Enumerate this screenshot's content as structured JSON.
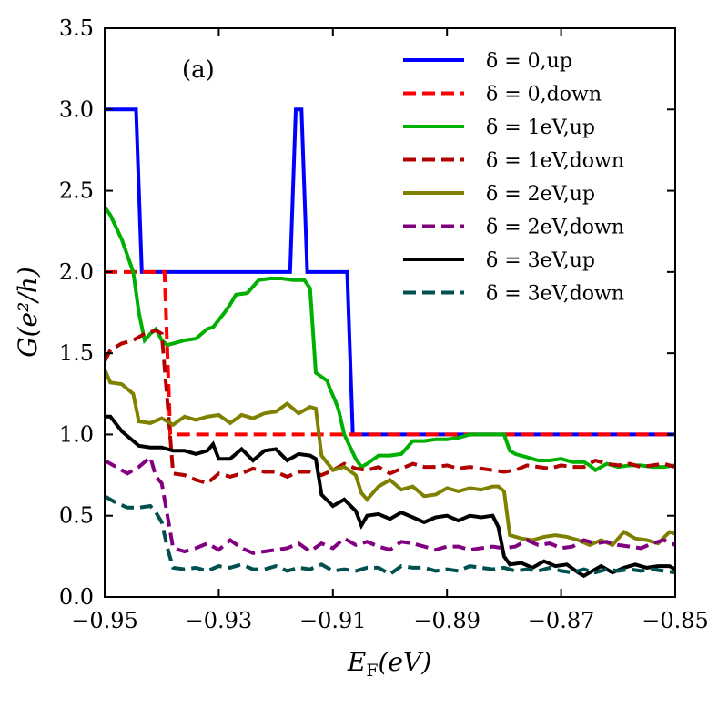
{
  "chart_data": {
    "type": "line",
    "panel_label": "(a)",
    "xlabel": "E_F(eV)",
    "xlabel_main": "E",
    "xlabel_sub": "F",
    "xlabel_tail": "(eV)",
    "ylabel": "G(e²/h)",
    "xlim": [
      -0.95,
      -0.85
    ],
    "ylim": [
      0.0,
      3.5
    ],
    "xticks": [
      -0.95,
      -0.93,
      -0.91,
      -0.89,
      -0.87,
      -0.85
    ],
    "xtick_labels": [
      "−0.95",
      "−0.93",
      "−0.91",
      "−0.89",
      "−0.87",
      "−0.85"
    ],
    "yticks": [
      0.0,
      0.5,
      1.0,
      1.5,
      2.0,
      2.5,
      3.0,
      3.5
    ],
    "ytick_labels": [
      "0.0",
      "0.5",
      "1.0",
      "1.5",
      "2.0",
      "2.5",
      "3.0",
      "3.5"
    ],
    "legend_position": "top-right",
    "series": [
      {
        "name": "δ = 0,up",
        "color": "#0000ff",
        "dash": "solid",
        "x": [
          -0.95,
          -0.9445,
          -0.9435,
          -0.9175,
          -0.9165,
          -0.9155,
          -0.9145,
          -0.9135,
          -0.9075,
          -0.9065,
          -0.85
        ],
        "y": [
          3.0,
          3.0,
          2.0,
          2.0,
          3.0,
          3.0,
          2.0,
          2.0,
          2.0,
          1.0,
          1.0
        ]
      },
      {
        "name": "δ = 0,down",
        "color": "#ff0000",
        "dash": "dashed",
        "x": [
          -0.95,
          -0.9395,
          -0.9385,
          -0.85
        ],
        "y": [
          2.0,
          2.0,
          1.0,
          1.0
        ]
      },
      {
        "name": "δ = 1eV,up",
        "color": "#00b000",
        "dash": "solid",
        "x": [
          -0.95,
          -0.949,
          -0.947,
          -0.945,
          -0.944,
          -0.943,
          -0.942,
          -0.941,
          -0.94,
          -0.939,
          -0.938,
          -0.936,
          -0.934,
          -0.932,
          -0.931,
          -0.929,
          -0.928,
          -0.927,
          -0.925,
          -0.923,
          -0.921,
          -0.919,
          -0.917,
          -0.915,
          -0.914,
          -0.913,
          -0.911,
          -0.9105,
          -0.9095,
          -0.909,
          -0.908,
          -0.906,
          -0.905,
          -0.904,
          -0.902,
          -0.9,
          -0.898,
          -0.896,
          -0.894,
          -0.892,
          -0.89,
          -0.888,
          -0.886,
          -0.884,
          -0.882,
          -0.88,
          -0.879,
          -0.878,
          -0.876,
          -0.874,
          -0.872,
          -0.87,
          -0.868,
          -0.866,
          -0.865,
          -0.864,
          -0.862,
          -0.86,
          -0.858,
          -0.856,
          -0.854,
          -0.852,
          -0.85
        ],
        "y": [
          2.4,
          2.35,
          2.2,
          2.0,
          1.75,
          1.58,
          1.62,
          1.65,
          1.58,
          1.55,
          1.56,
          1.58,
          1.59,
          1.65,
          1.66,
          1.75,
          1.8,
          1.86,
          1.87,
          1.95,
          1.96,
          1.96,
          1.95,
          1.95,
          1.9,
          1.38,
          1.33,
          1.28,
          1.2,
          1.15,
          1.0,
          0.85,
          0.8,
          0.82,
          0.87,
          0.87,
          0.88,
          0.96,
          0.96,
          0.97,
          0.97,
          0.98,
          1.0,
          1.0,
          1.0,
          1.0,
          0.9,
          0.88,
          0.86,
          0.84,
          0.84,
          0.85,
          0.83,
          0.83,
          0.81,
          0.78,
          0.82,
          0.8,
          0.81,
          0.81,
          0.8,
          0.8,
          0.81
        ]
      },
      {
        "name": "δ = 1eV,down",
        "color": "#b00000",
        "dash": "dashed",
        "x": [
          -0.95,
          -0.949,
          -0.947,
          -0.945,
          -0.943,
          -0.941,
          -0.94,
          -0.939,
          -0.938,
          -0.936,
          -0.934,
          -0.932,
          -0.93,
          -0.928,
          -0.926,
          -0.924,
          -0.922,
          -0.92,
          -0.918,
          -0.916,
          -0.914,
          -0.912,
          -0.91,
          -0.908,
          -0.906,
          -0.904,
          -0.902,
          -0.9,
          -0.898,
          -0.896,
          -0.894,
          -0.892,
          -0.89,
          -0.888,
          -0.886,
          -0.884,
          -0.882,
          -0.88,
          -0.878,
          -0.876,
          -0.874,
          -0.872,
          -0.87,
          -0.868,
          -0.866,
          -0.864,
          -0.862,
          -0.86,
          -0.858,
          -0.856,
          -0.854,
          -0.852,
          -0.85
        ],
        "y": [
          1.45,
          1.52,
          1.56,
          1.58,
          1.62,
          1.64,
          1.62,
          1.2,
          0.76,
          0.75,
          0.72,
          0.7,
          0.76,
          0.74,
          0.76,
          0.79,
          0.77,
          0.77,
          0.74,
          0.77,
          0.77,
          0.75,
          0.78,
          0.82,
          0.79,
          0.78,
          0.8,
          0.76,
          0.79,
          0.82,
          0.8,
          0.8,
          0.81,
          0.79,
          0.8,
          0.79,
          0.78,
          0.77,
          0.78,
          0.81,
          0.8,
          0.79,
          0.81,
          0.8,
          0.8,
          0.84,
          0.82,
          0.81,
          0.82,
          0.8,
          0.81,
          0.82,
          0.8
        ]
      },
      {
        "name": "δ = 2eV,up",
        "color": "#808000",
        "dash": "solid",
        "x": [
          -0.95,
          -0.949,
          -0.947,
          -0.945,
          -0.944,
          -0.942,
          -0.94,
          -0.938,
          -0.936,
          -0.934,
          -0.932,
          -0.93,
          -0.928,
          -0.926,
          -0.924,
          -0.922,
          -0.92,
          -0.918,
          -0.916,
          -0.914,
          -0.913,
          -0.912,
          -0.91,
          -0.908,
          -0.906,
          -0.905,
          -0.904,
          -0.902,
          -0.9,
          -0.898,
          -0.896,
          -0.894,
          -0.892,
          -0.89,
          -0.888,
          -0.886,
          -0.884,
          -0.882,
          -0.881,
          -0.88,
          -0.879,
          -0.877,
          -0.875,
          -0.873,
          -0.871,
          -0.869,
          -0.867,
          -0.865,
          -0.863,
          -0.861,
          -0.859,
          -0.857,
          -0.855,
          -0.853,
          -0.851,
          -0.85
        ],
        "y": [
          1.4,
          1.32,
          1.31,
          1.25,
          1.08,
          1.07,
          1.1,
          1.06,
          1.11,
          1.09,
          1.11,
          1.12,
          1.07,
          1.12,
          1.1,
          1.13,
          1.14,
          1.19,
          1.13,
          1.17,
          1.16,
          0.87,
          0.78,
          0.8,
          0.75,
          0.64,
          0.6,
          0.68,
          0.72,
          0.66,
          0.68,
          0.62,
          0.63,
          0.67,
          0.65,
          0.67,
          0.66,
          0.68,
          0.68,
          0.65,
          0.38,
          0.36,
          0.35,
          0.37,
          0.38,
          0.37,
          0.35,
          0.32,
          0.35,
          0.32,
          0.4,
          0.36,
          0.35,
          0.33,
          0.4,
          0.39
        ]
      },
      {
        "name": "δ = 2eV,down",
        "color": "#800080",
        "dash": "dashed",
        "x": [
          -0.95,
          -0.948,
          -0.946,
          -0.944,
          -0.942,
          -0.941,
          -0.94,
          -0.939,
          -0.938,
          -0.936,
          -0.934,
          -0.932,
          -0.93,
          -0.928,
          -0.926,
          -0.924,
          -0.922,
          -0.92,
          -0.918,
          -0.916,
          -0.914,
          -0.912,
          -0.91,
          -0.908,
          -0.906,
          -0.904,
          -0.902,
          -0.9,
          -0.898,
          -0.896,
          -0.894,
          -0.892,
          -0.89,
          -0.888,
          -0.886,
          -0.884,
          -0.882,
          -0.88,
          -0.878,
          -0.876,
          -0.874,
          -0.872,
          -0.87,
          -0.868,
          -0.866,
          -0.864,
          -0.862,
          -0.86,
          -0.858,
          -0.856,
          -0.854,
          -0.852,
          -0.85
        ],
        "y": [
          0.84,
          0.8,
          0.76,
          0.8,
          0.86,
          0.74,
          0.7,
          0.5,
          0.3,
          0.28,
          0.3,
          0.33,
          0.29,
          0.35,
          0.3,
          0.27,
          0.28,
          0.29,
          0.3,
          0.33,
          0.28,
          0.33,
          0.3,
          0.36,
          0.32,
          0.34,
          0.31,
          0.29,
          0.34,
          0.33,
          0.31,
          0.29,
          0.31,
          0.31,
          0.29,
          0.3,
          0.31,
          0.3,
          0.31,
          0.35,
          0.32,
          0.33,
          0.3,
          0.31,
          0.35,
          0.33,
          0.34,
          0.32,
          0.31,
          0.3,
          0.33,
          0.35,
          0.32
        ]
      },
      {
        "name": "δ = 3eV,up",
        "color": "#000000",
        "dash": "solid",
        "x": [
          -0.95,
          -0.949,
          -0.947,
          -0.945,
          -0.944,
          -0.942,
          -0.94,
          -0.938,
          -0.936,
          -0.934,
          -0.932,
          -0.931,
          -0.93,
          -0.928,
          -0.926,
          -0.924,
          -0.922,
          -0.92,
          -0.918,
          -0.916,
          -0.914,
          -0.913,
          -0.912,
          -0.91,
          -0.908,
          -0.906,
          -0.905,
          -0.904,
          -0.902,
          -0.9,
          -0.898,
          -0.896,
          -0.894,
          -0.892,
          -0.89,
          -0.888,
          -0.886,
          -0.884,
          -0.882,
          -0.881,
          -0.88,
          -0.879,
          -0.877,
          -0.875,
          -0.873,
          -0.871,
          -0.869,
          -0.867,
          -0.866,
          -0.865,
          -0.863,
          -0.861,
          -0.859,
          -0.857,
          -0.855,
          -0.853,
          -0.851,
          -0.85
        ],
        "y": [
          1.11,
          1.11,
          1.02,
          0.96,
          0.93,
          0.92,
          0.92,
          0.9,
          0.9,
          0.88,
          0.9,
          0.94,
          0.85,
          0.85,
          0.91,
          0.84,
          0.9,
          0.91,
          0.84,
          0.88,
          0.87,
          0.85,
          0.63,
          0.56,
          0.6,
          0.53,
          0.44,
          0.5,
          0.51,
          0.48,
          0.52,
          0.49,
          0.46,
          0.49,
          0.5,
          0.47,
          0.5,
          0.49,
          0.5,
          0.43,
          0.25,
          0.2,
          0.21,
          0.18,
          0.22,
          0.19,
          0.2,
          0.15,
          0.13,
          0.15,
          0.19,
          0.15,
          0.18,
          0.2,
          0.18,
          0.19,
          0.19,
          0.17
        ]
      },
      {
        "name": "δ = 3eV,down",
        "color": "#005050",
        "dash": "dashed",
        "x": [
          -0.95,
          -0.948,
          -0.946,
          -0.944,
          -0.942,
          -0.941,
          -0.94,
          -0.939,
          -0.938,
          -0.936,
          -0.934,
          -0.932,
          -0.93,
          -0.928,
          -0.926,
          -0.924,
          -0.922,
          -0.92,
          -0.918,
          -0.916,
          -0.914,
          -0.912,
          -0.91,
          -0.908,
          -0.906,
          -0.904,
          -0.902,
          -0.9,
          -0.898,
          -0.896,
          -0.894,
          -0.892,
          -0.89,
          -0.888,
          -0.886,
          -0.884,
          -0.882,
          -0.88,
          -0.878,
          -0.876,
          -0.874,
          -0.872,
          -0.87,
          -0.868,
          -0.866,
          -0.864,
          -0.862,
          -0.86,
          -0.858,
          -0.856,
          -0.854,
          -0.852,
          -0.85
        ],
        "y": [
          0.62,
          0.58,
          0.55,
          0.55,
          0.56,
          0.52,
          0.46,
          0.3,
          0.18,
          0.17,
          0.18,
          0.16,
          0.19,
          0.18,
          0.2,
          0.17,
          0.17,
          0.19,
          0.16,
          0.18,
          0.17,
          0.2,
          0.16,
          0.17,
          0.16,
          0.18,
          0.18,
          0.14,
          0.19,
          0.18,
          0.18,
          0.16,
          0.17,
          0.16,
          0.19,
          0.18,
          0.17,
          0.18,
          0.16,
          0.17,
          0.16,
          0.18,
          0.16,
          0.15,
          0.17,
          0.15,
          0.17,
          0.16,
          0.17,
          0.16,
          0.17,
          0.16,
          0.15
        ]
      }
    ]
  }
}
